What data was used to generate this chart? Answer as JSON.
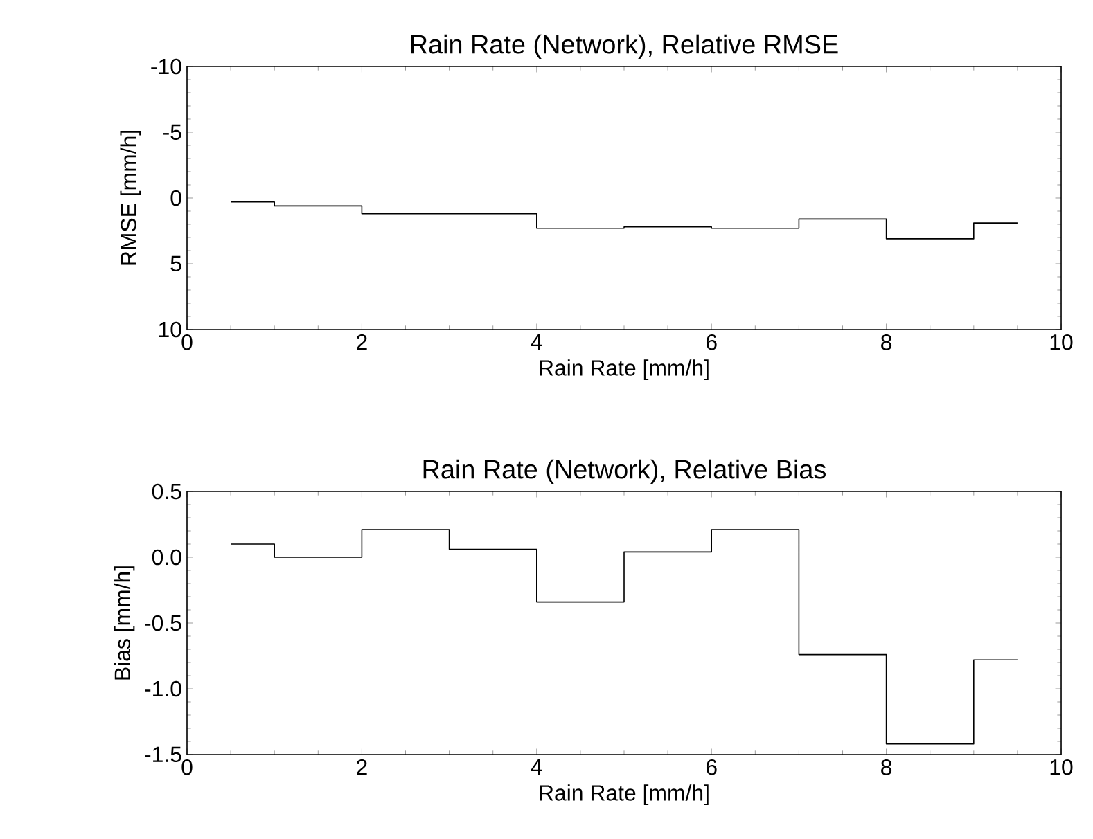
{
  "chart_data": [
    {
      "type": "step",
      "title": "Rain Rate (Network), Relative RMSE",
      "xlabel": "Rain Rate [mm/h]",
      "ylabel": "RMSE [mm/h]",
      "xlim": [
        0,
        10
      ],
      "xticks": [
        0,
        2,
        4,
        6,
        8,
        10
      ],
      "ylim": [
        10,
        -10
      ],
      "yticks": [
        -10,
        -5,
        0,
        5,
        10
      ],
      "series": [
        {
          "color": "#000000",
          "x": [
            0.5,
            1,
            2,
            4,
            5,
            6,
            7,
            8,
            9,
            9.5
          ],
          "values": [
            0.3,
            0.6,
            1.2,
            2.3,
            2.2,
            2.3,
            1.6,
            3.1,
            1.9,
            1.9
          ]
        }
      ]
    },
    {
      "type": "step",
      "title": "Rain Rate (Network), Relative Bias",
      "xlabel": "Rain Rate [mm/h]",
      "ylabel": "Bias [mm/h]",
      "xlim": [
        0,
        10
      ],
      "xticks": [
        0,
        2,
        4,
        6,
        8,
        10
      ],
      "ylim": [
        -1.5,
        0.5
      ],
      "yticks": [
        {
          "value": 0.5,
          "label": "0.5"
        },
        {
          "value": 0,
          "label": "0.0"
        },
        {
          "value": -0.5,
          "label": "-0.5"
        },
        {
          "value": -1,
          "label": "-1.0"
        },
        {
          "value": -1.5,
          "label": "-1.5"
        }
      ],
      "series": [
        {
          "color": "#000000",
          "x": [
            0.5,
            1,
            2,
            3,
            4,
            5,
            6,
            7,
            8,
            9,
            9.5
          ],
          "values": [
            0.1,
            0.0,
            0.21,
            0.06,
            -0.34,
            0.04,
            0.21,
            -0.74,
            -1.42,
            -0.78,
            -0.78
          ]
        }
      ]
    }
  ]
}
